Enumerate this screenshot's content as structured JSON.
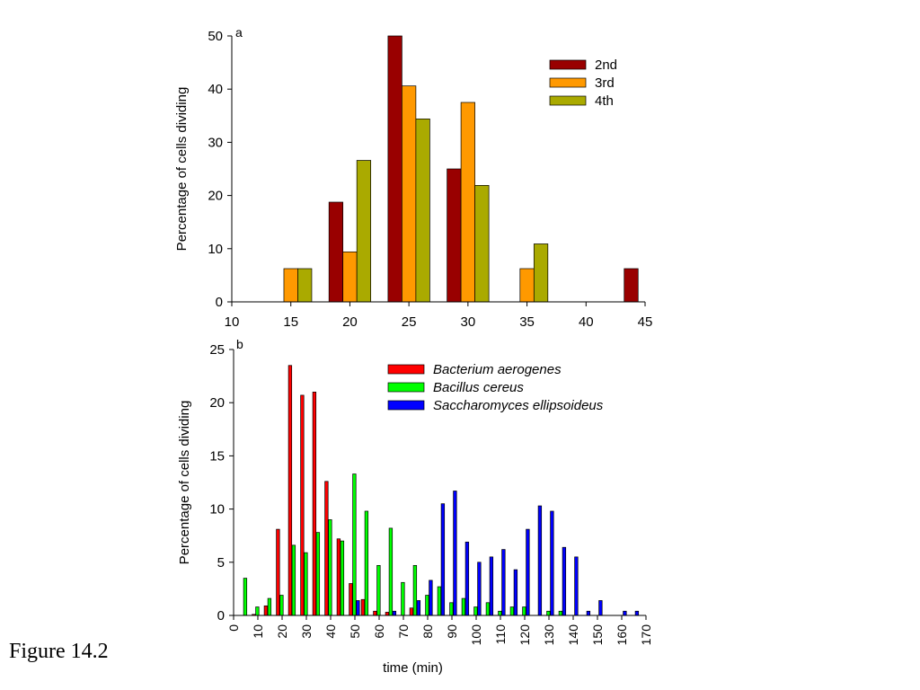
{
  "figure_caption": "Figure 14.2",
  "chart_data": [
    {
      "panel_label": "a",
      "type": "bar",
      "ylabel": "Percentage of cells dividing",
      "xlabel": "",
      "xlim": [
        10,
        45
      ],
      "ylim": [
        0,
        50
      ],
      "xticks": [
        10,
        15,
        20,
        25,
        30,
        35,
        40,
        45
      ],
      "yticks": [
        0,
        10,
        20,
        30,
        40,
        50
      ],
      "legend_position": "top-right",
      "series": [
        {
          "name": "2nd",
          "color": "#990000",
          "points": [
            [
              20,
              18.75
            ],
            [
              25,
              50
            ],
            [
              30,
              25
            ],
            [
              45,
              6.25
            ]
          ]
        },
        {
          "name": "3rd",
          "color": "#ff9900",
          "points": [
            [
              15,
              6.25
            ],
            [
              20,
              9.4
            ],
            [
              25,
              40.6
            ],
            [
              30,
              37.5
            ],
            [
              35,
              6.25
            ]
          ]
        },
        {
          "name": "4th",
          "color": "#aaaa00",
          "points": [
            [
              15,
              6.25
            ],
            [
              20,
              26.6
            ],
            [
              25,
              34.4
            ],
            [
              30,
              21.9
            ],
            [
              35,
              10.9
            ]
          ]
        }
      ]
    },
    {
      "panel_label": "b",
      "type": "bar",
      "ylabel": "Percentage of cells dividing",
      "xlabel": "time (min)",
      "xlim": [
        0,
        170
      ],
      "ylim": [
        0,
        25
      ],
      "xticks": [
        0,
        10,
        20,
        30,
        40,
        50,
        60,
        70,
        80,
        90,
        100,
        110,
        120,
        130,
        140,
        150,
        160,
        170
      ],
      "yticks": [
        0,
        5,
        10,
        15,
        20,
        25
      ],
      "legend_position": "top-right",
      "series": [
        {
          "name": "Bacterium aerogenes",
          "color": "#ff0000",
          "points": [
            [
              10,
              0.1
            ],
            [
              15,
              0.9
            ],
            [
              20,
              8.1
            ],
            [
              25,
              23.5
            ],
            [
              30,
              20.7
            ],
            [
              35,
              21.0
            ],
            [
              40,
              12.6
            ],
            [
              45,
              7.2
            ],
            [
              50,
              3.0
            ],
            [
              55,
              1.5
            ],
            [
              60,
              0.4
            ],
            [
              65,
              0.3
            ],
            [
              70,
              0
            ],
            [
              75,
              0.7
            ],
            [
              80,
              0
            ]
          ]
        },
        {
          "name": "Bacillus cereus",
          "color": "#00ff00",
          "points": [
            [
              5,
              3.5
            ],
            [
              10,
              0.8
            ],
            [
              15,
              1.6
            ],
            [
              20,
              1.9
            ],
            [
              25,
              6.6
            ],
            [
              30,
              5.9
            ],
            [
              35,
              7.8
            ],
            [
              40,
              9.0
            ],
            [
              45,
              7.0
            ],
            [
              50,
              13.3
            ],
            [
              55,
              9.8
            ],
            [
              60,
              4.7
            ],
            [
              65,
              8.2
            ],
            [
              70,
              3.1
            ],
            [
              75,
              4.7
            ],
            [
              80,
              1.9
            ],
            [
              85,
              2.7
            ],
            [
              90,
              1.2
            ],
            [
              95,
              1.6
            ],
            [
              100,
              0.8
            ],
            [
              105,
              1.2
            ],
            [
              110,
              0.4
            ],
            [
              115,
              0.8
            ],
            [
              120,
              0.8
            ],
            [
              125,
              0
            ],
            [
              130,
              0.4
            ],
            [
              135,
              0.4
            ]
          ]
        },
        {
          "name": "Saccharomyces ellipsoideus",
          "color": "#0000ff",
          "points": [
            [
              50,
              1.4
            ],
            [
              55,
              0
            ],
            [
              60,
              0
            ],
            [
              65,
              0.4
            ],
            [
              70,
              0
            ],
            [
              75,
              1.4
            ],
            [
              80,
              3.3
            ],
            [
              85,
              10.5
            ],
            [
              90,
              11.7
            ],
            [
              95,
              6.9
            ],
            [
              100,
              5.0
            ],
            [
              105,
              5.5
            ],
            [
              110,
              6.2
            ],
            [
              115,
              4.3
            ],
            [
              120,
              8.1
            ],
            [
              125,
              10.3
            ],
            [
              130,
              9.8
            ],
            [
              135,
              6.4
            ],
            [
              140,
              5.5
            ],
            [
              145,
              0.4
            ],
            [
              150,
              1.4
            ],
            [
              155,
              0
            ],
            [
              160,
              0.4
            ],
            [
              165,
              0.4
            ]
          ]
        }
      ]
    }
  ]
}
